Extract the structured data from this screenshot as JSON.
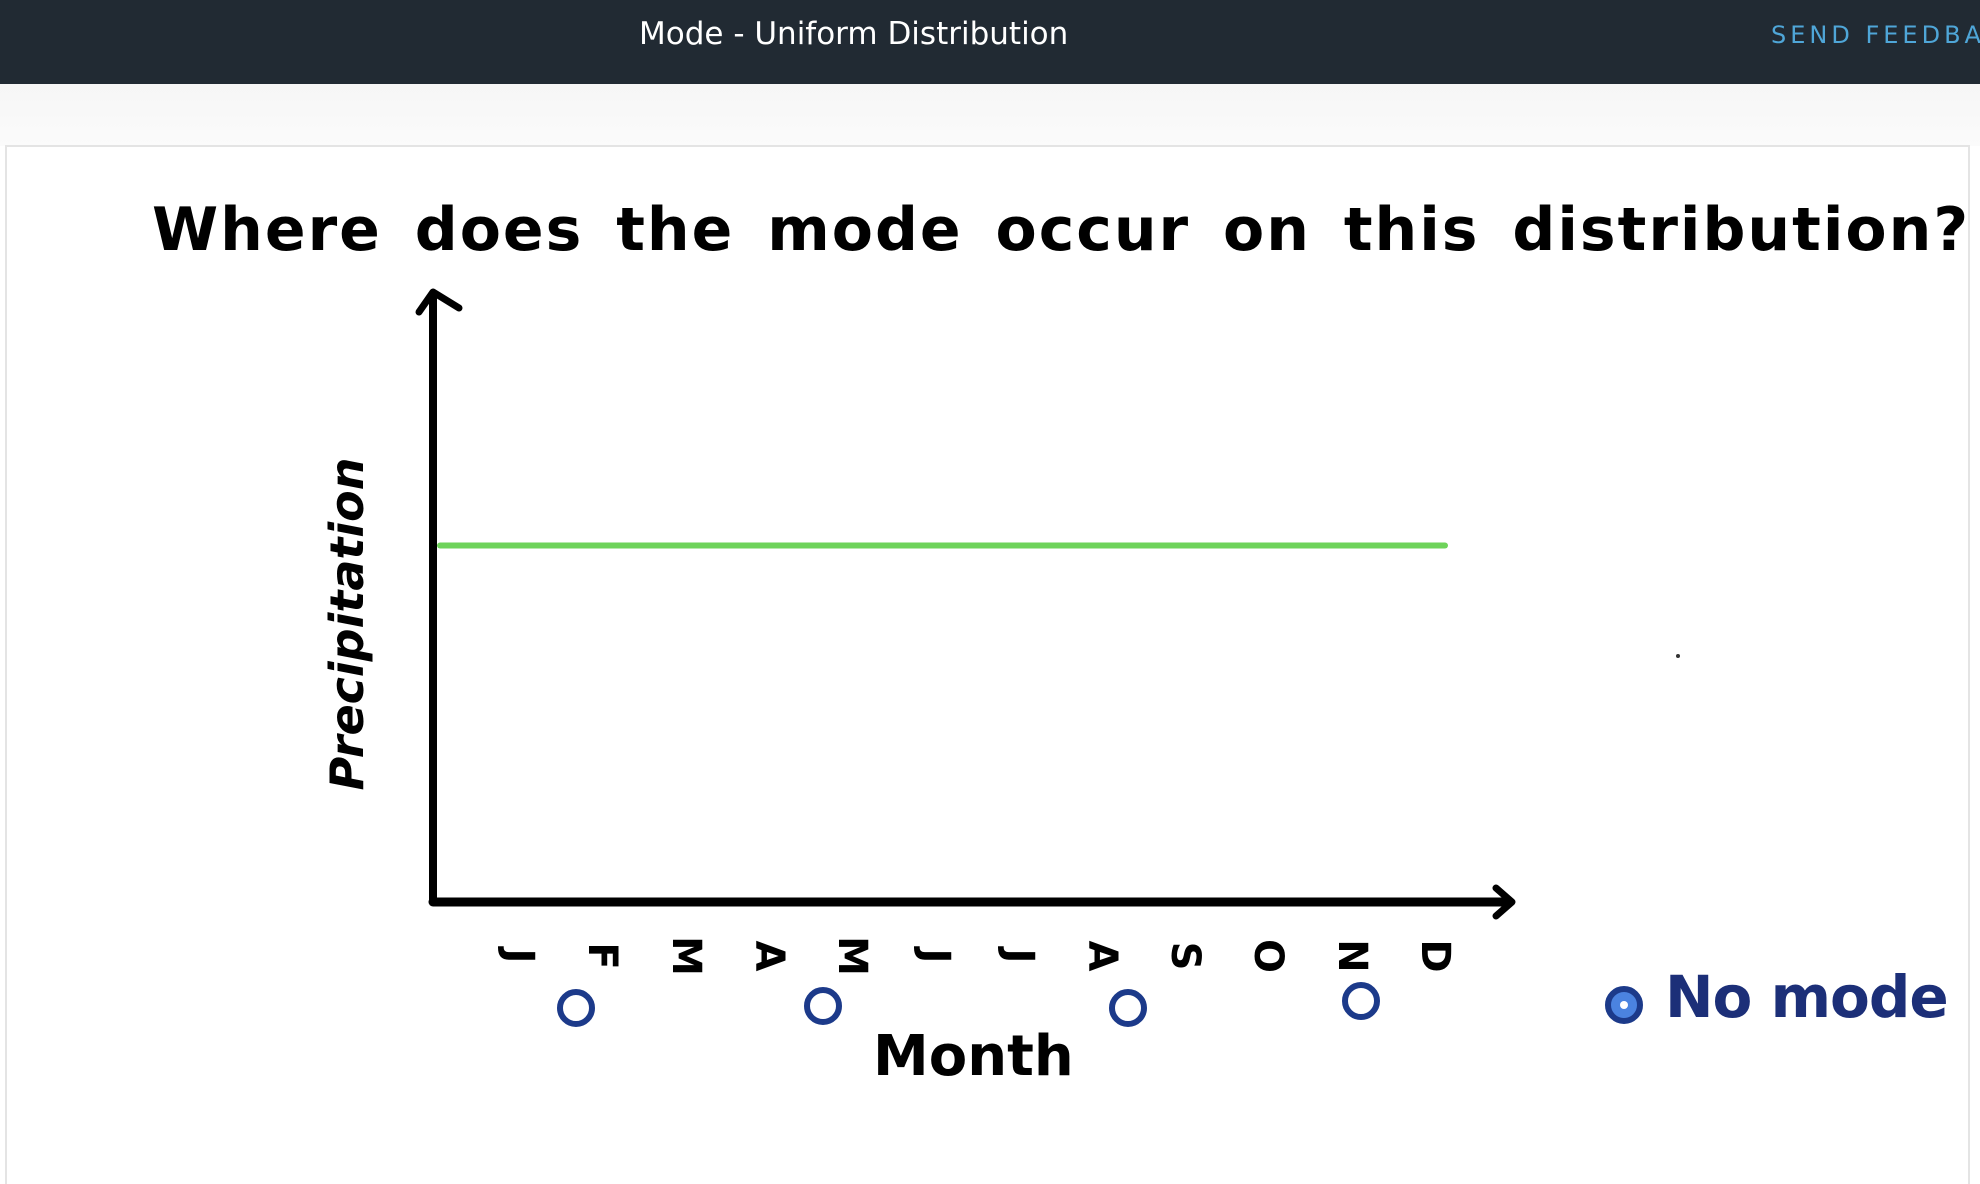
{
  "header": {
    "title": "Mode - Uniform Distribution",
    "feedback_label": "SEND FEEDBAC"
  },
  "quiz": {
    "question": "Where does the mode occur on this distribution?",
    "selected_option": "No mode",
    "options": [
      {
        "label": "J",
        "selected": false
      },
      {
        "label": "A",
        "selected": false
      },
      {
        "label": "A",
        "selected": false
      },
      {
        "label": "N",
        "selected": false
      },
      {
        "label": "No mode",
        "selected": true
      }
    ],
    "colors": {
      "radio_border": "#1c3a8a",
      "radio_selected_fill": "#4b83e0",
      "no_mode_text": "#1c2f78"
    }
  },
  "chart_data": {
    "type": "line",
    "xlabel": "Month",
    "ylabel": "Precipitation",
    "categories": [
      "J",
      "F",
      "M",
      "A",
      "M",
      "J",
      "J",
      "A",
      "S",
      "O",
      "N",
      "D"
    ],
    "series": [
      {
        "values": [
          1,
          1,
          1,
          1,
          1,
          1,
          1,
          1,
          1,
          1,
          1,
          1
        ],
        "color": "#6ed35a"
      }
    ],
    "ylim": [
      0,
      1.7
    ],
    "grid": false,
    "axis_color": "#000000"
  }
}
